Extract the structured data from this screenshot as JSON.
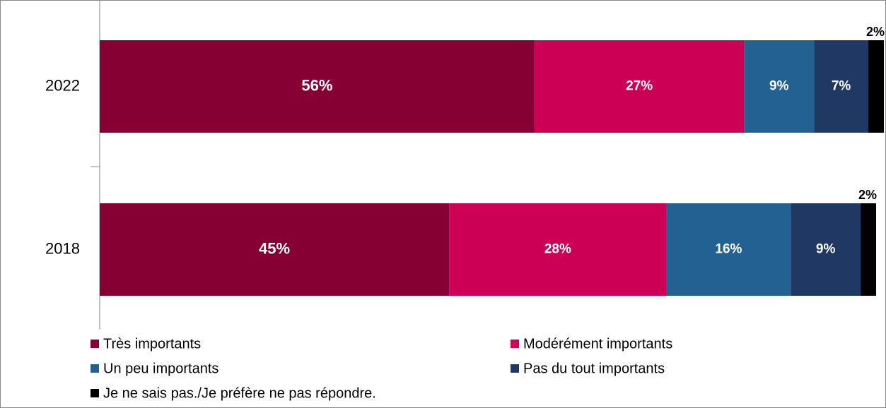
{
  "chart_data": {
    "type": "stacked-bar-horizontal",
    "categories": [
      "2022",
      "2018"
    ],
    "series": [
      {
        "name": "Très importants",
        "color": "#870033",
        "values": [
          56,
          45
        ],
        "value_labels": [
          "56%",
          "45%"
        ]
      },
      {
        "name": "Modérément importants",
        "color": "#cc0055",
        "values": [
          27,
          28
        ],
        "value_labels": [
          "27%",
          "28%"
        ]
      },
      {
        "name": "Un peu importants",
        "color": "#236192",
        "values": [
          9,
          16
        ],
        "value_labels": [
          "9%",
          "16%"
        ]
      },
      {
        "name": "Pas du tout importants",
        "color": "#1f3864",
        "values": [
          7,
          9
        ],
        "value_labels": [
          "7%",
          "9%"
        ]
      },
      {
        "name": "Je ne sais pas./Je préfère ne pas répondre.",
        "color": "#000000",
        "values": [
          2,
          2
        ],
        "value_labels": [
          "2%",
          "2%"
        ]
      }
    ],
    "legend": "bottom"
  }
}
